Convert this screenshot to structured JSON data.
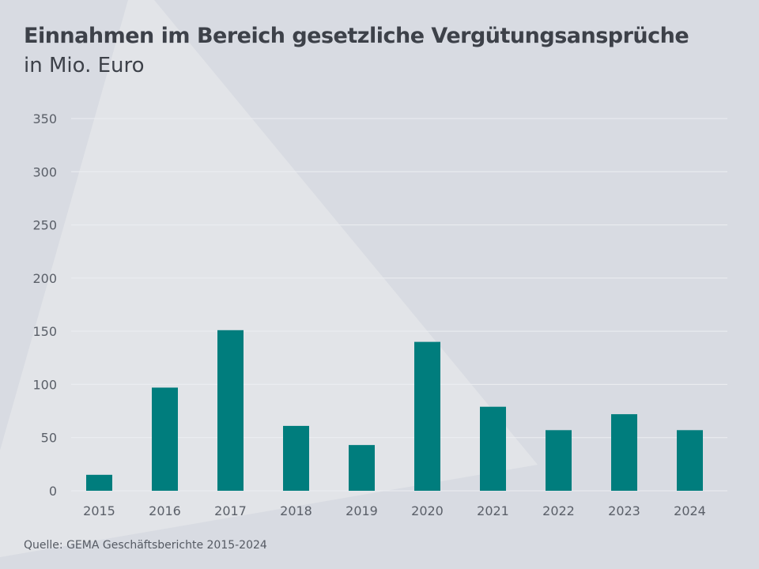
{
  "chart_data": {
    "type": "bar",
    "title": "Einnahmen im Bereich gesetzliche Vergütungsansprüche",
    "subtitle": "in Mio. Euro",
    "xlabel": "",
    "ylabel": "",
    "categories": [
      "2015",
      "2016",
      "2017",
      "2018",
      "2019",
      "2020",
      "2021",
      "2022",
      "2023",
      "2024"
    ],
    "values": [
      15,
      97,
      151,
      61,
      43,
      140,
      79,
      57,
      72,
      57
    ],
    "ylim": [
      0,
      350
    ],
    "yticks": [
      0,
      50,
      100,
      150,
      200,
      250,
      300,
      350
    ],
    "grid": true,
    "legend": "none",
    "source": "Quelle: GEMA Geschäftsberichte 2015-2024",
    "colors": {
      "bar": "#007d7d",
      "grid": "#eceef2",
      "text": "#3d4149",
      "tick": "#5a5f68"
    }
  }
}
